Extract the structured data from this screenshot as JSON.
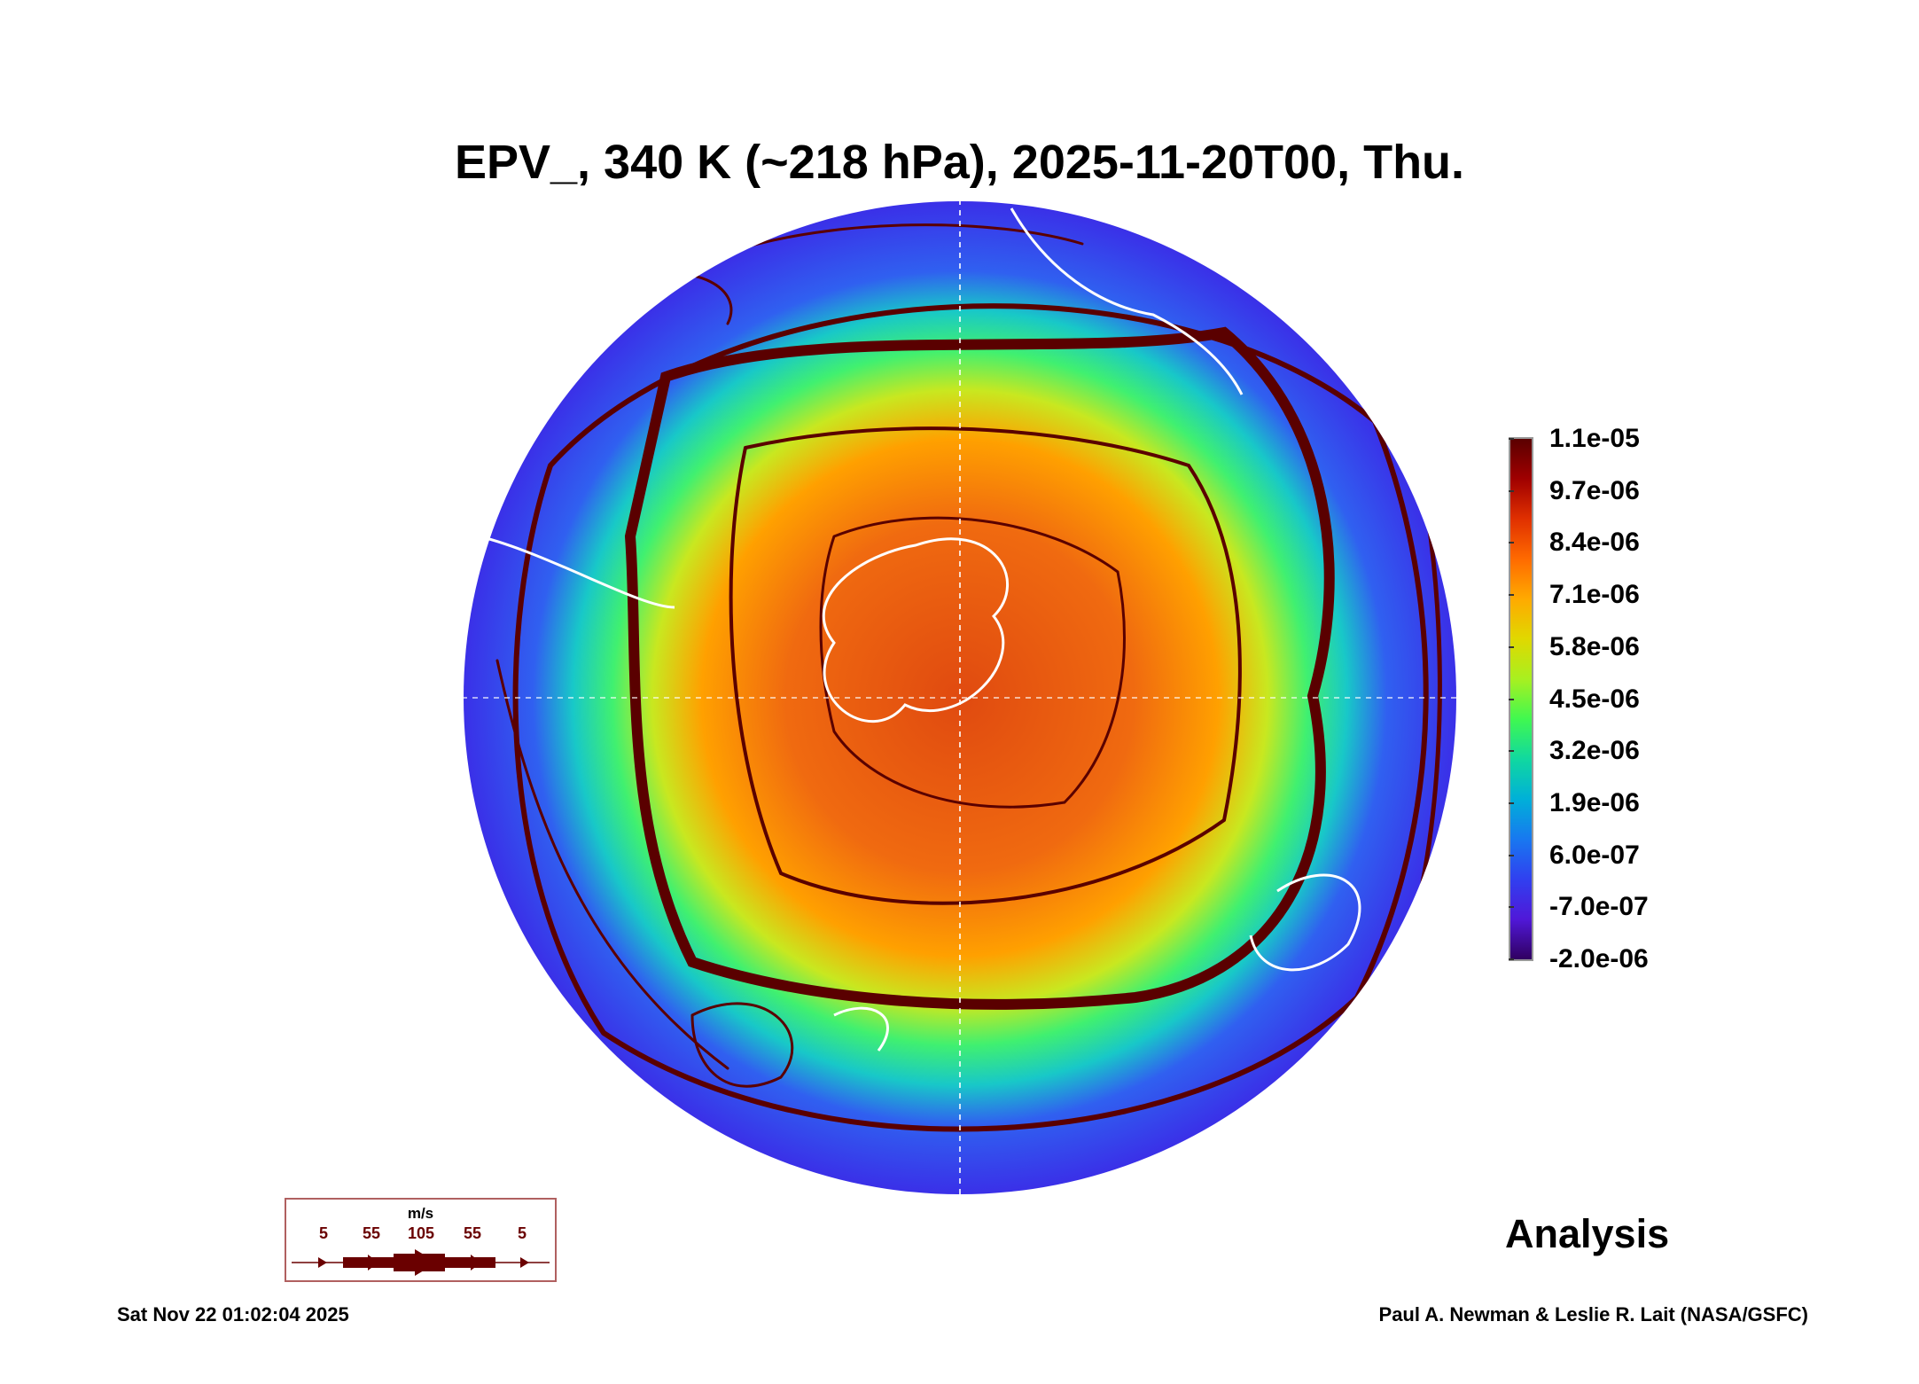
{
  "title": "EPV_, 340 K (~218 hPa), 2025-11-20T00, Thu.",
  "colorbar": {
    "labels": [
      "1.1e-05",
      "9.7e-06",
      "8.4e-06",
      "7.1e-06",
      "5.8e-06",
      "4.5e-06",
      "3.2e-06",
      "1.9e-06",
      "6.0e-07",
      "-7.0e-07",
      "-2.0e-06"
    ]
  },
  "legend": {
    "unit": "m/s",
    "speeds": [
      "5",
      "55",
      "105",
      "55",
      "5"
    ]
  },
  "analysis_label": "Analysis",
  "timestamp": "Sat Nov 22 01:02:04 2025",
  "credit": "Paul A. Newman & Leslie R. Lait (NASA/GSFC)",
  "colors": {
    "streamline": "#5a0000",
    "coast": "#ffffff"
  }
}
